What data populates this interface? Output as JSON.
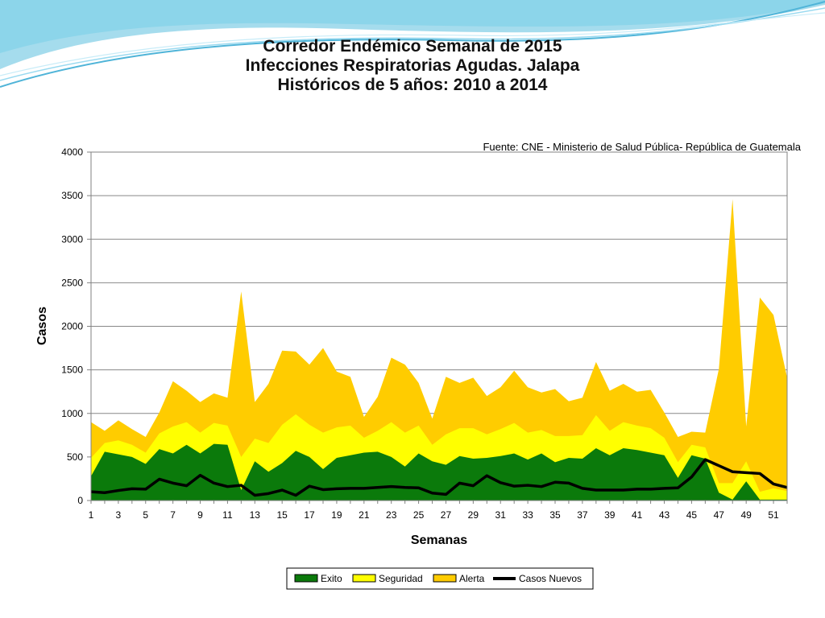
{
  "slide": {
    "title_lines": [
      "Corredor Endémico Semanal de 2015",
      "Infecciones Respiratorias Agudas.  Jalapa",
      "Históricos de 5 años: 2010 a 2014"
    ]
  },
  "colors": {
    "exito": "#0B7A0B",
    "seguridad": "#FFFF00",
    "alerta": "#FFCC00",
    "casos_nuevos": "#000000",
    "swoosh": "#5BC0DE"
  },
  "chart_data": {
    "type": "area",
    "source_note": "Fuente: CNE - Ministerio de Salud Pública- República de Guatemala",
    "xlabel": "Semanas",
    "ylabel": "Casos",
    "ylim": [
      0,
      4000
    ],
    "yticks": [
      0,
      500,
      1000,
      1500,
      2000,
      2500,
      3000,
      3500,
      4000
    ],
    "xticks": [
      1,
      3,
      5,
      7,
      9,
      11,
      13,
      15,
      17,
      19,
      21,
      23,
      25,
      27,
      29,
      31,
      33,
      35,
      37,
      39,
      41,
      43,
      45,
      47,
      49,
      51
    ],
    "x": [
      1,
      2,
      3,
      4,
      5,
      6,
      7,
      8,
      9,
      10,
      11,
      12,
      13,
      14,
      15,
      16,
      17,
      18,
      19,
      20,
      21,
      22,
      23,
      24,
      25,
      26,
      27,
      28,
      29,
      30,
      31,
      32,
      33,
      34,
      35,
      36,
      37,
      38,
      39,
      40,
      41,
      42,
      43,
      44,
      45,
      46,
      47,
      48,
      49,
      50,
      51,
      52
    ],
    "grid": true,
    "legend_position": "bottom",
    "series": [
      {
        "name": "Exito",
        "kind": "area",
        "values": [
          280,
          560,
          530,
          500,
          420,
          590,
          540,
          640,
          540,
          650,
          640,
          120,
          450,
          330,
          430,
          570,
          500,
          360,
          490,
          520,
          550,
          560,
          500,
          390,
          540,
          450,
          410,
          510,
          480,
          490,
          510,
          540,
          470,
          540,
          440,
          490,
          480,
          600,
          520,
          600,
          580,
          550,
          520,
          260,
          520,
          480,
          90,
          10,
          220,
          10,
          10,
          10
        ]
      },
      {
        "name": "Seguridad",
        "kind": "area",
        "values": [
          490,
          660,
          690,
          640,
          550,
          770,
          850,
          900,
          780,
          890,
          860,
          500,
          710,
          660,
          870,
          990,
          870,
          780,
          840,
          860,
          720,
          800,
          900,
          780,
          860,
          640,
          760,
          830,
          830,
          760,
          820,
          890,
          780,
          810,
          740,
          740,
          750,
          980,
          800,
          900,
          860,
          830,
          720,
          440,
          640,
          610,
          200,
          200,
          450,
          100,
          140,
          110
        ]
      },
      {
        "name": "Alerta",
        "kind": "area",
        "values": [
          900,
          800,
          920,
          820,
          730,
          1010,
          1370,
          1260,
          1130,
          1230,
          1180,
          2400,
          1130,
          1340,
          1720,
          1710,
          1560,
          1750,
          1480,
          1420,
          960,
          1190,
          1640,
          1560,
          1350,
          940,
          1420,
          1350,
          1410,
          1200,
          1300,
          1490,
          1300,
          1240,
          1280,
          1140,
          1180,
          1590,
          1260,
          1340,
          1250,
          1270,
          1010,
          730,
          790,
          780,
          1510,
          3460,
          850,
          2330,
          2130,
          1410
        ]
      },
      {
        "name": "Casos Nuevos",
        "kind": "line",
        "values": [
          100,
          90,
          115,
          135,
          130,
          245,
          200,
          170,
          290,
          200,
          160,
          175,
          60,
          80,
          120,
          60,
          165,
          125,
          135,
          140,
          140,
          150,
          160,
          150,
          145,
          85,
          70,
          200,
          170,
          285,
          205,
          165,
          175,
          160,
          210,
          200,
          140,
          120,
          120,
          120,
          130,
          130,
          140,
          145,
          270,
          470,
          400,
          330,
          320,
          310,
          190,
          150
        ]
      }
    ]
  }
}
